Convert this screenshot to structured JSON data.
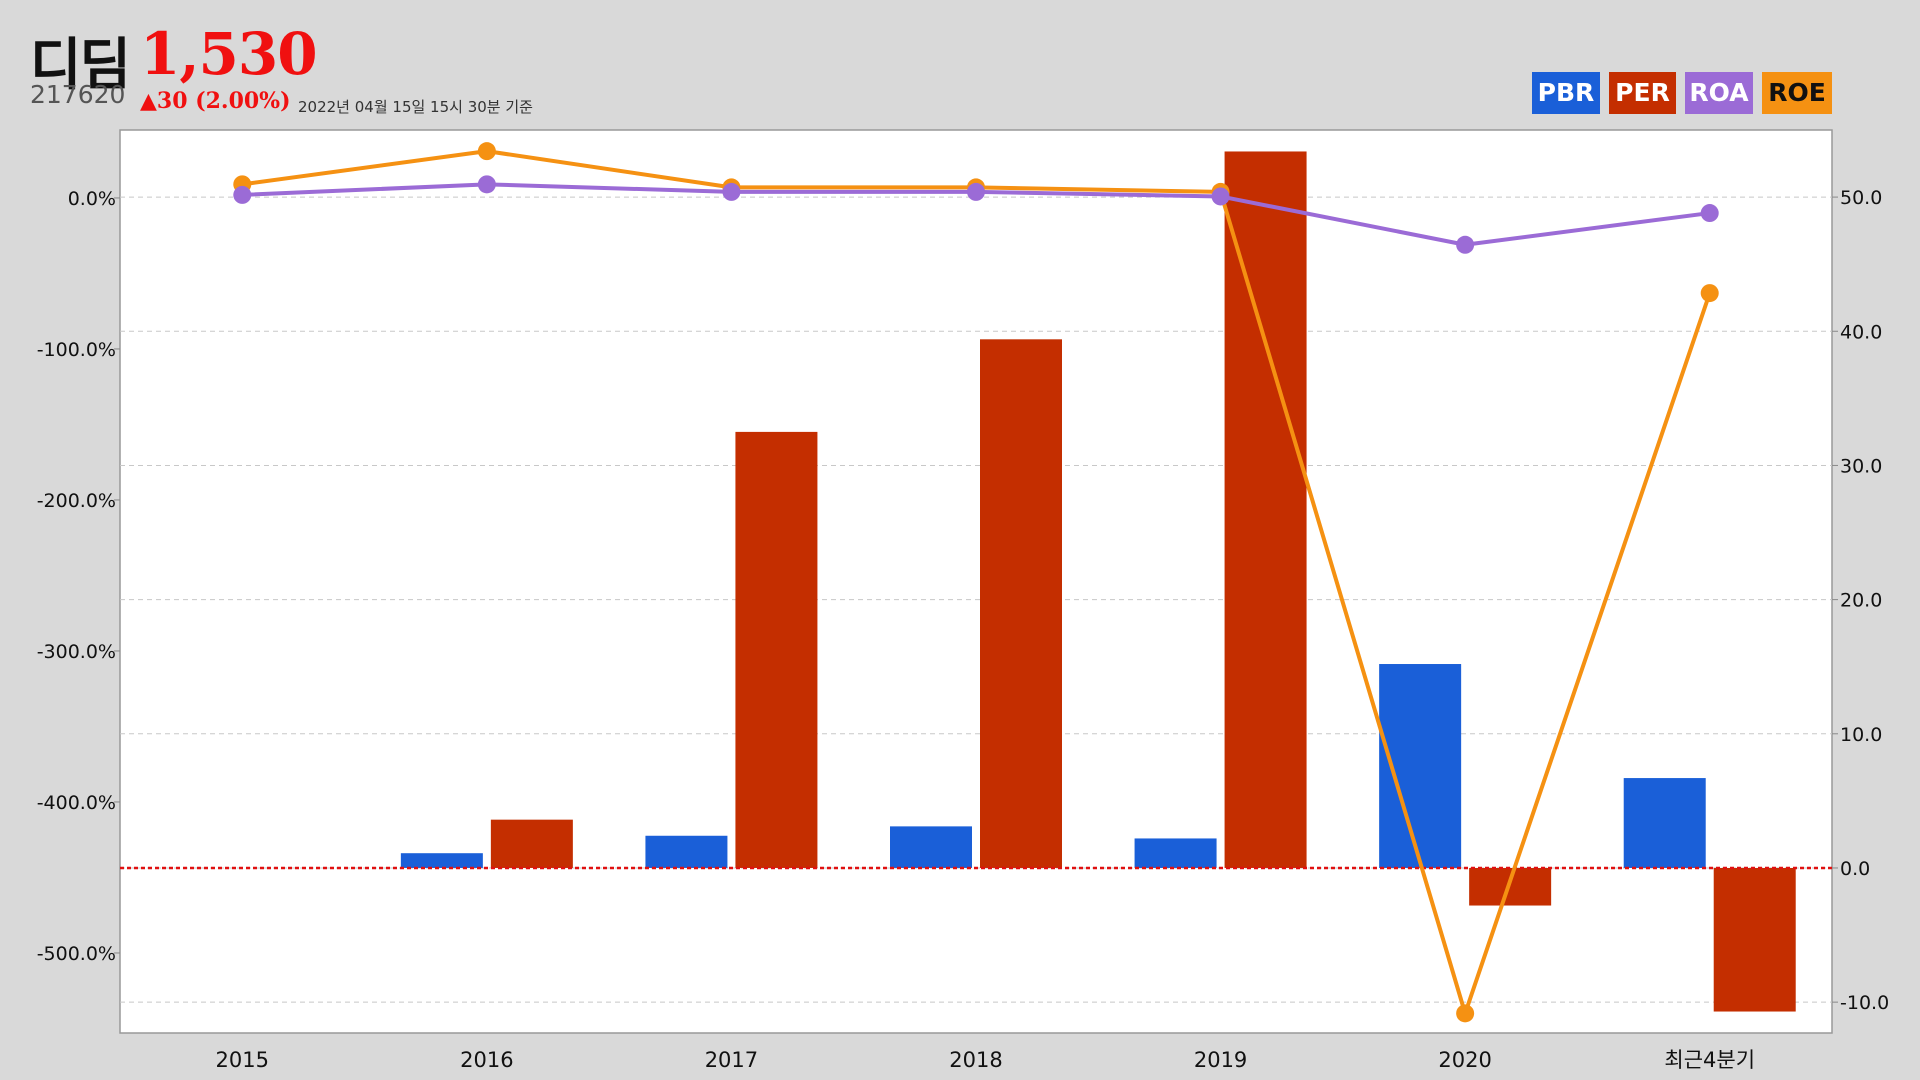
{
  "header": {
    "name": "디딤",
    "price": "1,530",
    "code": "217620",
    "change": "▲30 (2.00%)",
    "timestamp": "2022년 04월 15일 15시 30분 기준"
  },
  "chart_data": {
    "type": "bar",
    "categories": [
      "2015",
      "2016",
      "2017",
      "2018",
      "2019",
      "2020",
      "최근4분기"
    ],
    "legend": [
      "PBR",
      "PER",
      "ROA",
      "ROE"
    ],
    "series": [
      {
        "name": "PBR",
        "kind": "bar",
        "axis": "right",
        "color": "#1a5fd8",
        "values": [
          0,
          1.1,
          2.4,
          3.1,
          2.2,
          15.2,
          6.7
        ]
      },
      {
        "name": "PER",
        "kind": "bar",
        "axis": "right",
        "color": "#c42e00",
        "values": [
          0,
          3.6,
          32.5,
          39.4,
          53.4,
          -2.8,
          -10.7
        ]
      },
      {
        "name": "ROA",
        "kind": "line",
        "axis": "left",
        "color": "#9b6bd6",
        "values": [
          2,
          9,
          4,
          4,
          1,
          -31,
          -10
        ]
      },
      {
        "name": "ROE",
        "kind": "line",
        "axis": "left",
        "color": "#f59112",
        "values": [
          9,
          31,
          7,
          7,
          4,
          -540,
          -63
        ]
      }
    ],
    "left_axis": {
      "ticks": [
        0,
        -100,
        -200,
        -300,
        -400,
        -500
      ],
      "tick_labels": [
        "0.0%",
        "-100.0%",
        "-200.0%",
        "-300.0%",
        "-400.0%",
        "-500.0%"
      ],
      "range": [
        -553,
        45
      ]
    },
    "right_axis": {
      "ticks": [
        50,
        40,
        30,
        20,
        10,
        0,
        -10
      ],
      "tick_labels": [
        "50.0",
        "40.0",
        "30.0",
        "20.0",
        "10.0",
        "0.0",
        "-10.0"
      ],
      "range": [
        -12.3,
        55
      ]
    },
    "reference_line": {
      "axis": "right",
      "value": 0,
      "color": "#e01010"
    },
    "grid": true,
    "legend_position": "top-right"
  },
  "colors": {
    "background": "#d9d9d9",
    "plot": "#ffffff",
    "pbr": "#1a5fd8",
    "per": "#c42e00",
    "roa": "#9b6bd6",
    "roe": "#f59112",
    "price": "#f01010"
  }
}
